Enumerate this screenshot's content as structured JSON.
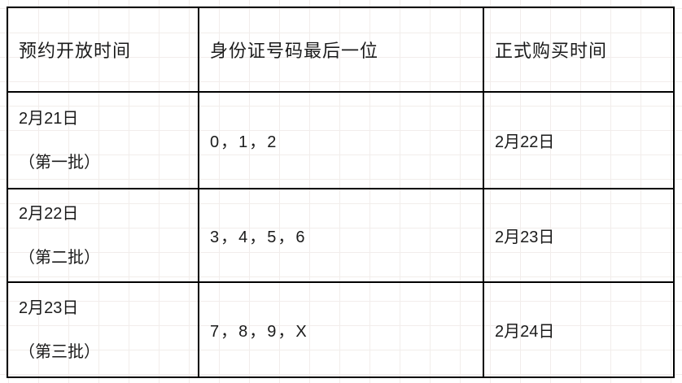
{
  "table": {
    "headers": {
      "reservation_open_time": "预约开放时间",
      "id_last_digit": "身份证号码最后一位",
      "official_purchase_time": "正式购买时间"
    },
    "rows": [
      {
        "open_date": "2月21日",
        "batch": "（第一批）",
        "id_digits": "0，1，2",
        "buy_date": "2月22日"
      },
      {
        "open_date": "2月22日",
        "batch": "（第二批）",
        "id_digits": "3，4，5，6",
        "buy_date": "2月23日"
      },
      {
        "open_date": "2月23日",
        "batch": "（第三批）",
        "id_digits": "7，8，9，X",
        "buy_date": "2月24日"
      }
    ],
    "colors": {
      "border": "#000000",
      "text": "#1b1b1b",
      "background": "#ffffff",
      "grid_line": "#f2edeb"
    }
  },
  "chart_data": {
    "type": "table",
    "columns": [
      "预约开放时间",
      "身份证号码最后一位",
      "正式购买时间"
    ],
    "rows": [
      [
        "2月21日（第一批）",
        "0，1，2",
        "2月22日"
      ],
      [
        "2月22日（第二批）",
        "3，4，5，6",
        "2月23日"
      ],
      [
        "2月23日（第三批）",
        "7，8，9，X",
        "2月24日"
      ]
    ]
  }
}
